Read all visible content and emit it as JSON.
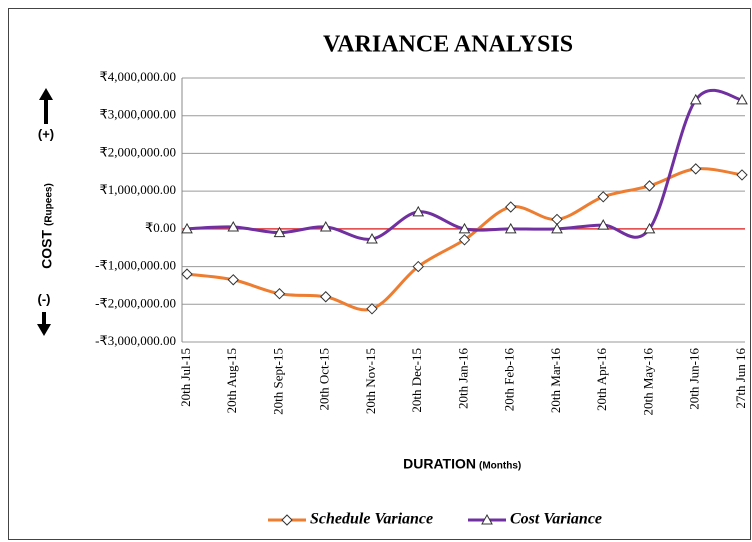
{
  "chart_data": {
    "type": "line",
    "title": "VARIANCE ANALYSIS",
    "ylabel": "COST",
    "ylabel_unit": "(Rupees)",
    "xlabel": "DURATION",
    "xlabel_unit": "(Months)",
    "annotations": [
      "(+)",
      "(-)"
    ],
    "categories": [
      "20th Jul-15",
      "20th Aug-15",
      "20th Sept-15",
      "20th Oct-15",
      "20th Nov-15",
      "20th Dec-15",
      "20th Jan-16",
      "20th Feb-16",
      "20th Mar-16",
      "20th Apr-16",
      "20th May-16",
      "20th Jun-16",
      "27th Jun 16"
    ],
    "series": [
      {
        "name": "Schedule Variance",
        "color": "#ed7d31",
        "marker": "diamond",
        "values": [
          -1200000,
          -1350000,
          -1720000,
          -1800000,
          -2120000,
          -1000000,
          -290000,
          580000,
          250000,
          850000,
          1140000,
          1590000,
          1430000
        ]
      },
      {
        "name": "Cost Variance",
        "color": "#7030a0",
        "marker": "triangle",
        "values": [
          0,
          50000,
          -100000,
          50000,
          -270000,
          450000,
          0,
          0,
          0,
          100000,
          0,
          3420000,
          3420000
        ]
      }
    ],
    "ylim": [
      -3000000,
      4000000
    ],
    "yticks": [
      {
        "value": -3000000,
        "label": "-₹3,000,000.00"
      },
      {
        "value": -2000000,
        "label": "-₹2,000,000.00"
      },
      {
        "value": -1000000,
        "label": "-₹1,000,000.00"
      },
      {
        "value": 0,
        "label": "₹0.00"
      },
      {
        "value": 1000000,
        "label": "₹1,000,000.00"
      },
      {
        "value": 2000000,
        "label": "₹2,000,000.00"
      },
      {
        "value": 3000000,
        "label": "₹3,000,000.00"
      },
      {
        "value": 4000000,
        "label": "₹4,000,000.00"
      }
    ],
    "grid": true,
    "zero_line_color": "#e03c3c",
    "legend": "bottom",
    "smooth": true
  }
}
